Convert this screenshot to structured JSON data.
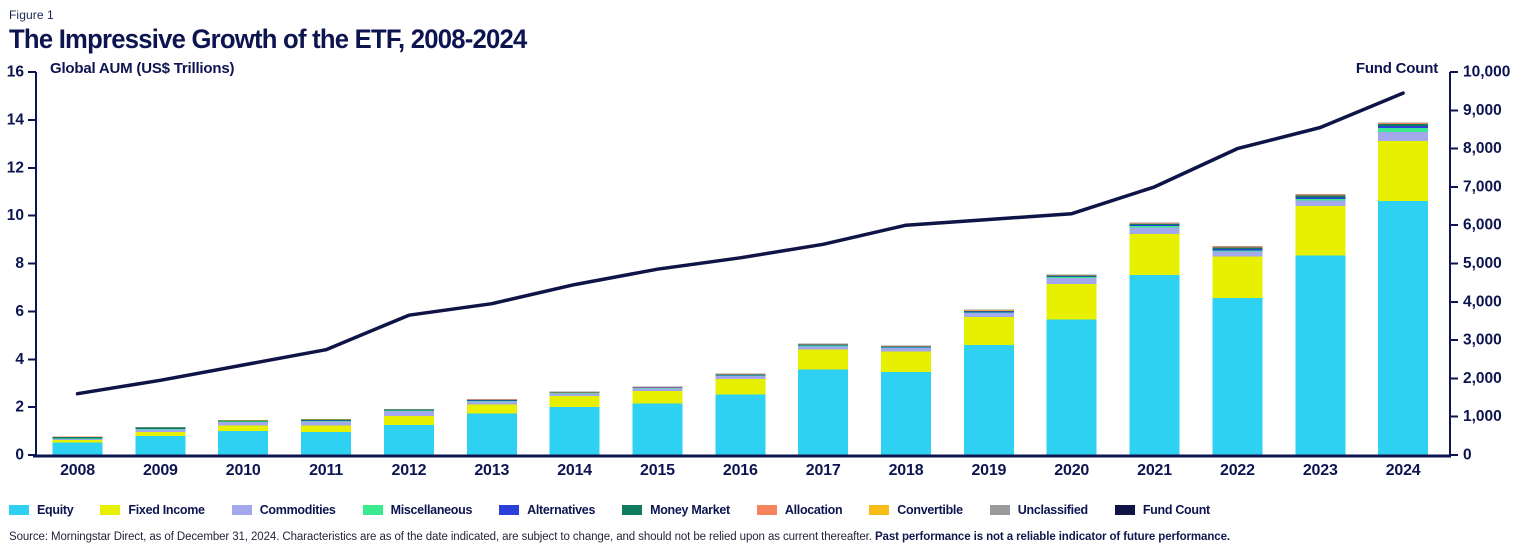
{
  "figure_label": "Figure 1",
  "title": "The Impressive Growth of the ETF, 2008-2024",
  "colors": {
    "title_navy": "#0d1550",
    "axis_navy": "#0d1550",
    "background": "#ffffff"
  },
  "chart_data": {
    "type": "bar",
    "subtype": "stacked-bars-with-line",
    "title": "The Impressive Growth of the ETF, 2008-2024",
    "grid": false,
    "legend_position": "bottom",
    "categories": [
      "2008",
      "2009",
      "2010",
      "2011",
      "2012",
      "2013",
      "2014",
      "2015",
      "2016",
      "2017",
      "2018",
      "2019",
      "2020",
      "2021",
      "2022",
      "2023",
      "2024"
    ],
    "left_axis": {
      "title": "Global AUM (US$ Trillions)",
      "min": 0,
      "max": 16,
      "step": 2
    },
    "right_axis": {
      "title": "Fund Count",
      "min": 0,
      "max": 10000,
      "step": 1000
    },
    "series": [
      {
        "name": "Equity",
        "color": "#2ed1f2",
        "values": [
          0.53,
          0.8,
          1.0,
          0.96,
          1.26,
          1.74,
          2.0,
          2.16,
          2.52,
          3.58,
          3.47,
          4.6,
          5.66,
          7.52,
          6.56,
          8.34,
          10.62
        ]
      },
      {
        "name": "Fixed Income",
        "color": "#e6f000",
        "values": [
          0.1,
          0.17,
          0.23,
          0.27,
          0.36,
          0.38,
          0.46,
          0.52,
          0.66,
          0.82,
          0.86,
          1.16,
          1.48,
          1.72,
          1.74,
          2.06,
          2.5
        ]
      },
      {
        "name": "Commodities",
        "color": "#a3a8ec",
        "values": [
          0.04,
          0.09,
          0.14,
          0.18,
          0.21,
          0.12,
          0.1,
          0.09,
          0.13,
          0.14,
          0.13,
          0.17,
          0.25,
          0.26,
          0.2,
          0.23,
          0.38
        ]
      },
      {
        "name": "Miscellaneous",
        "color": "#3be98e",
        "values": [
          0.02,
          0.02,
          0.02,
          0.02,
          0.02,
          0.02,
          0.02,
          0.02,
          0.02,
          0.03,
          0.03,
          0.03,
          0.04,
          0.06,
          0.05,
          0.06,
          0.17
        ]
      },
      {
        "name": "Alternatives",
        "color": "#2b3fd9",
        "values": [
          0.01,
          0.01,
          0.01,
          0.01,
          0.015,
          0.015,
          0.02,
          0.02,
          0.02,
          0.025,
          0.025,
          0.03,
          0.03,
          0.04,
          0.06,
          0.07,
          0.08
        ]
      },
      {
        "name": "Money Market",
        "color": "#0e7a5e",
        "values": [
          0.06,
          0.06,
          0.04,
          0.04,
          0.03,
          0.025,
          0.02,
          0.02,
          0.02,
          0.02,
          0.02,
          0.03,
          0.03,
          0.04,
          0.06,
          0.08,
          0.08
        ]
      },
      {
        "name": "Allocation",
        "color": "#f5835d",
        "values": [
          0.005,
          0.005,
          0.01,
          0.01,
          0.012,
          0.012,
          0.015,
          0.015,
          0.02,
          0.02,
          0.02,
          0.025,
          0.03,
          0.035,
          0.03,
          0.04,
          0.04
        ]
      },
      {
        "name": "Convertible",
        "color": "#f7bc16",
        "values": [
          0.003,
          0.003,
          0.004,
          0.004,
          0.004,
          0.004,
          0.004,
          0.004,
          0.004,
          0.004,
          0.004,
          0.004,
          0.004,
          0.005,
          0.005,
          0.006,
          0.01
        ]
      },
      {
        "name": "Unclassified",
        "color": "#9a9a9a",
        "values": [
          0.012,
          0.012,
          0.012,
          0.012,
          0.015,
          0.015,
          0.015,
          0.015,
          0.015,
          0.02,
          0.02,
          0.02,
          0.02,
          0.025,
          0.02,
          0.025,
          0.02
        ]
      }
    ],
    "fund_count": {
      "name": "Fund Count",
      "color": "#0e1446",
      "values": [
        1600,
        1950,
        2350,
        2750,
        3650,
        3950,
        4450,
        4850,
        5150,
        5500,
        6000,
        6150,
        6300,
        7000,
        8000,
        8550,
        9450
      ]
    }
  },
  "legend": {
    "items": [
      {
        "label": "Equity",
        "color": "#2ed1f2"
      },
      {
        "label": "Fixed Income",
        "color": "#e6f000"
      },
      {
        "label": "Commodities",
        "color": "#a3a8ec"
      },
      {
        "label": "Miscellaneous",
        "color": "#3be98e"
      },
      {
        "label": "Alternatives",
        "color": "#2b3fd9"
      },
      {
        "label": "Money Market",
        "color": "#0e7a5e"
      },
      {
        "label": "Allocation",
        "color": "#f5835d"
      },
      {
        "label": "Convertible",
        "color": "#f7bc16"
      },
      {
        "label": "Unclassified",
        "color": "#9a9a9a"
      },
      {
        "label": "Fund Count",
        "color": "#0e1446"
      }
    ]
  },
  "source": {
    "text": "Source: Morningstar Direct, as of December 31, 2024. Characteristics are as of the date indicated, are subject to change, and should not be relied upon as current thereafter. ",
    "bold_text": "Past performance is not a reliable indicator of future performance."
  }
}
